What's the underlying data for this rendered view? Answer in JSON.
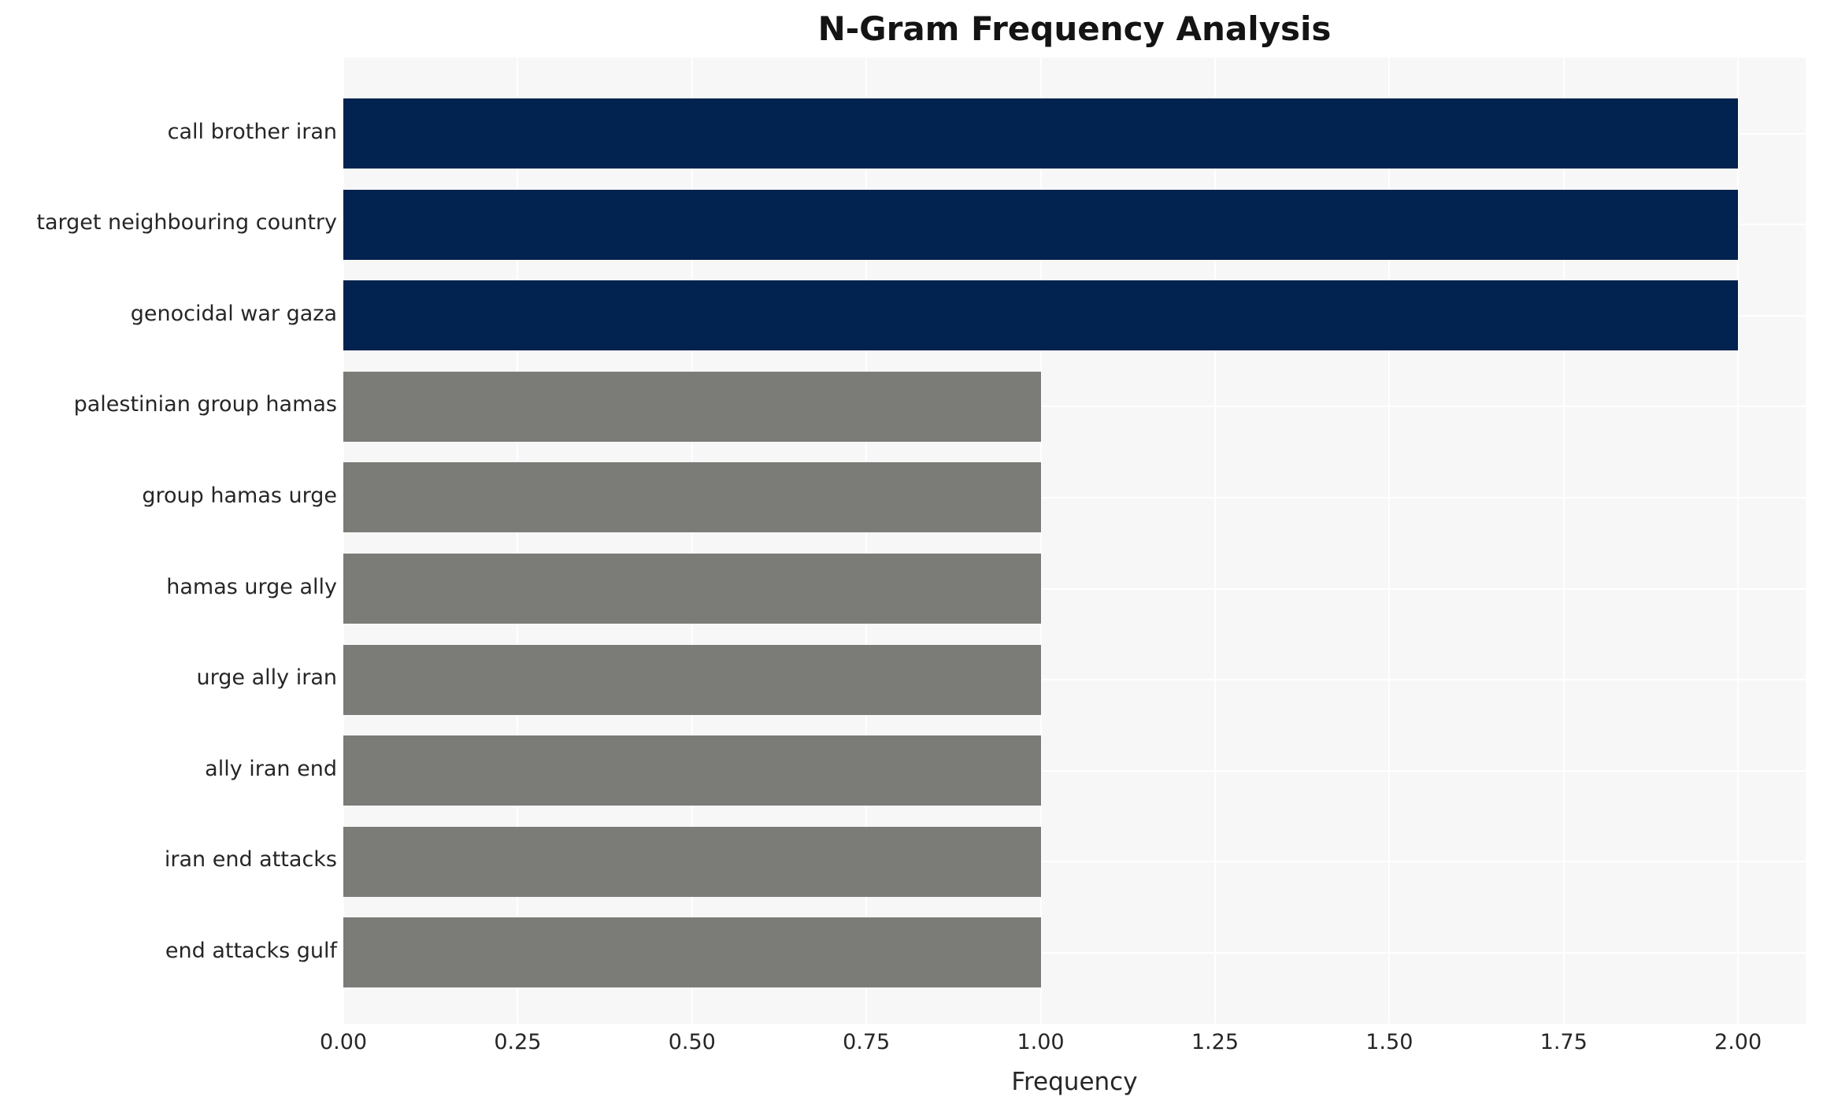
{
  "chart_data": {
    "type": "bar",
    "orientation": "horizontal",
    "title": "N-Gram Frequency Analysis",
    "xlabel": "Frequency",
    "ylabel": "",
    "categories": [
      "call brother iran",
      "target neighbouring country",
      "genocidal war gaza",
      "palestinian group hamas",
      "group hamas urge",
      "hamas urge ally",
      "urge ally iran",
      "ally iran end",
      "iran end attacks",
      "end attacks gulf"
    ],
    "values": [
      2.0,
      2.0,
      2.0,
      1.0,
      1.0,
      1.0,
      1.0,
      1.0,
      1.0,
      1.0
    ],
    "bar_colors": [
      "#02234F",
      "#02234F",
      "#02234F",
      "#7B7B78",
      "#7B7B78",
      "#7B7B78",
      "#7B7B78",
      "#7B7B78",
      "#7B7B78",
      "#7B7B78"
    ],
    "xlim": [
      0,
      2.097
    ],
    "xticks": [
      0.0,
      0.25,
      0.5,
      0.75,
      1.0,
      1.25,
      1.5,
      1.75,
      2.0
    ],
    "xtick_labels": [
      "0.00",
      "0.25",
      "0.50",
      "0.75",
      "1.00",
      "1.25",
      "1.50",
      "1.75",
      "2.00"
    ],
    "grid": true,
    "legend": "none",
    "colors": {
      "highlight_bar": "#02234F",
      "default_bar": "#7B7B78",
      "plot_background": "#F7F7F7",
      "gridline": "#FFFFFF",
      "text": "#262626",
      "title_text": "#141414"
    }
  }
}
